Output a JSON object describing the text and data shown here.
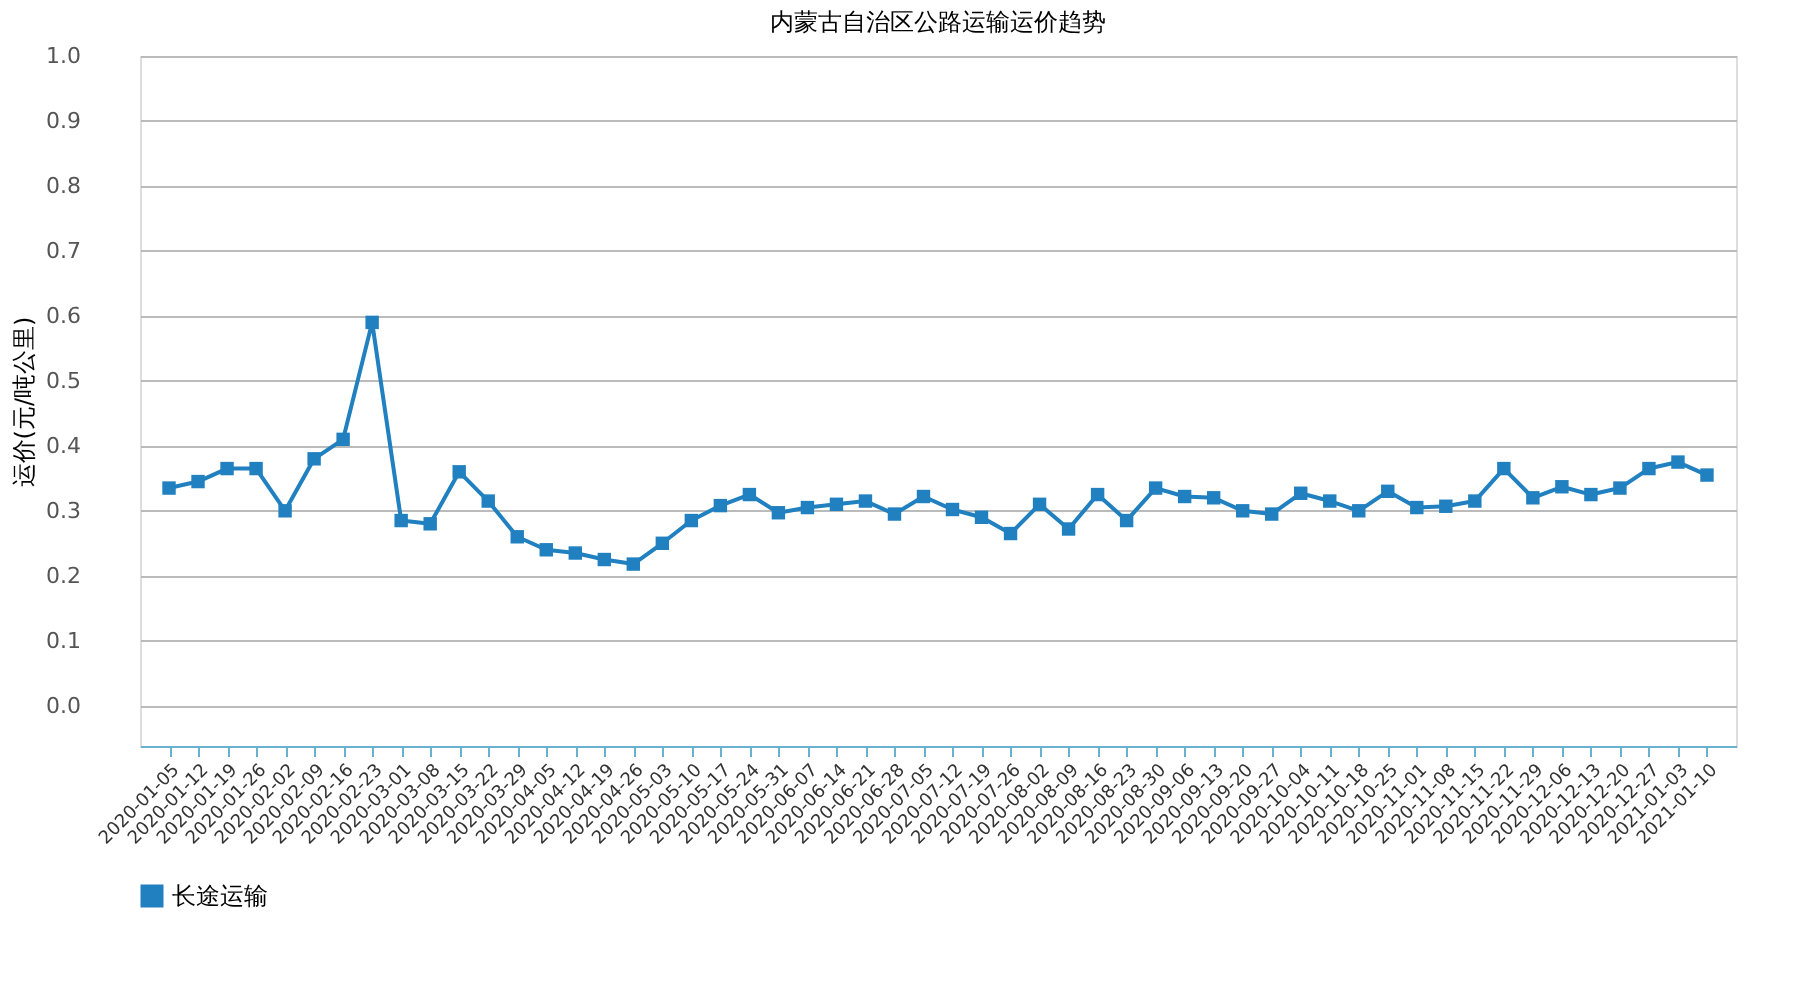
{
  "chart_data": {
    "type": "line",
    "title": "内蒙古自治区公路运输运价趋势",
    "ylabel": "运价(元/吨公里)",
    "categories": [
      "2020-01-05",
      "2020-01-12",
      "2020-01-19",
      "2020-01-26",
      "2020-02-02",
      "2020-02-09",
      "2020-02-16",
      "2020-02-23",
      "2020-03-01",
      "2020-03-08",
      "2020-03-15",
      "2020-03-22",
      "2020-03-29",
      "2020-04-05",
      "2020-04-12",
      "2020-04-19",
      "2020-04-26",
      "2020-05-03",
      "2020-05-10",
      "2020-05-17",
      "2020-05-24",
      "2020-05-31",
      "2020-06-07",
      "2020-06-14",
      "2020-06-21",
      "2020-06-28",
      "2020-07-05",
      "2020-07-12",
      "2020-07-19",
      "2020-07-26",
      "2020-08-02",
      "2020-08-09",
      "2020-08-16",
      "2020-08-23",
      "2020-08-30",
      "2020-09-06",
      "2020-09-13",
      "2020-09-20",
      "2020-09-27",
      "2020-10-04",
      "2020-10-11",
      "2020-10-18",
      "2020-10-25",
      "2020-11-01",
      "2020-11-08",
      "2020-11-15",
      "2020-11-22",
      "2020-11-29",
      "2020-12-06",
      "2020-12-13",
      "2020-12-20",
      "2020-12-27",
      "2021-01-03",
      "2021-01-10"
    ],
    "series": [
      {
        "name": "长途运输",
        "color": "#2080c0",
        "values": [
          0.335,
          0.345,
          0.365,
          0.365,
          0.3,
          0.38,
          0.41,
          0.59,
          0.285,
          0.28,
          0.36,
          0.315,
          0.26,
          0.24,
          0.235,
          0.225,
          0.218,
          0.25,
          0.285,
          0.308,
          0.325,
          0.297,
          0.305,
          0.31,
          0.315,
          0.295,
          0.322,
          0.302,
          0.29,
          0.265,
          0.31,
          0.272,
          0.325,
          0.285,
          0.335,
          0.322,
          0.32,
          0.3,
          0.295,
          0.327,
          0.315,
          0.3,
          0.33,
          0.305,
          0.307,
          0.315,
          0.365,
          0.32,
          0.337,
          0.325,
          0.335,
          0.365,
          0.375,
          0.355
        ]
      }
    ],
    "ylim": [
      -0.062,
      1.0
    ],
    "yticks": [
      {
        "value": 0,
        "label": "0.0"
      },
      0.1,
      0.2,
      0.3,
      0.4,
      0.5,
      0.6,
      0.7,
      0.8,
      0.9,
      {
        "value": 1,
        "label": "1.0"
      }
    ],
    "grid": "y",
    "legend": "bottom",
    "marker": "square",
    "line_style": "solid"
  }
}
